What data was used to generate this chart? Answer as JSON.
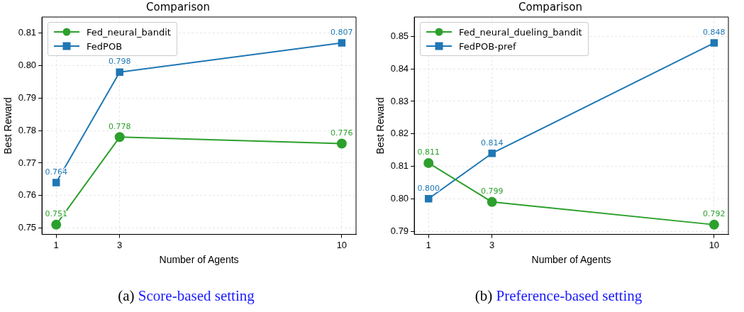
{
  "chart_data": [
    {
      "type": "line",
      "title": "Comparison",
      "xlabel": "Number of Agents",
      "ylabel": "Best Reward",
      "x": [
        1,
        3,
        10
      ],
      "xlim": [
        0.55,
        10.45
      ],
      "xticks": [
        1,
        3,
        10
      ],
      "ylim": [
        0.748,
        0.815
      ],
      "yticks": [
        0.75,
        0.76,
        0.77,
        0.78,
        0.79,
        {
          "value": 0.8,
          "label": "0.80"
        },
        0.81
      ],
      "series": [
        {
          "name": "Fed_neural_bandit",
          "color": "#2ca02c",
          "marker": "circle",
          "values": [
            0.751,
            0.778,
            0.776
          ],
          "value_labels": [
            "0.751",
            "0.778",
            "0.776"
          ]
        },
        {
          "name": "FedPOB",
          "color": "#1f77b4",
          "marker": "square",
          "values": [
            0.764,
            0.798,
            0.807
          ],
          "value_labels": [
            "0.764",
            "0.798",
            "0.807"
          ]
        }
      ],
      "grid": true,
      "legend": "top left",
      "annotations": [
        "(a) Score-based setting"
      ]
    },
    {
      "type": "line",
      "title": "Comparison",
      "xlabel": "Number of Agents",
      "ylabel": "Best Reward",
      "x": [
        1,
        3,
        10
      ],
      "xlim": [
        0.55,
        10.45
      ],
      "xticks": [
        1,
        3,
        10
      ],
      "ylim": [
        0.789,
        0.856
      ],
      "yticks": [
        0.79,
        {
          "value": 0.8,
          "label": "0.80"
        },
        0.81,
        0.82,
        0.83,
        0.84,
        0.85
      ],
      "series": [
        {
          "name": "Fed_neural_dueling_bandit",
          "color": "#2ca02c",
          "marker": "circle",
          "values": [
            0.811,
            0.799,
            0.792
          ],
          "value_labels": [
            "0.811",
            "0.799",
            "0.792"
          ]
        },
        {
          "name": "FedPOB-pref",
          "color": "#1f77b4",
          "marker": "square",
          "values": [
            0.8,
            0.814,
            0.848
          ],
          "value_labels": [
            "0.800",
            "0.814",
            "0.848"
          ]
        }
      ],
      "grid": true,
      "legend": "top left",
      "annotations": [
        "(b) Preference-based setting"
      ]
    }
  ]
}
